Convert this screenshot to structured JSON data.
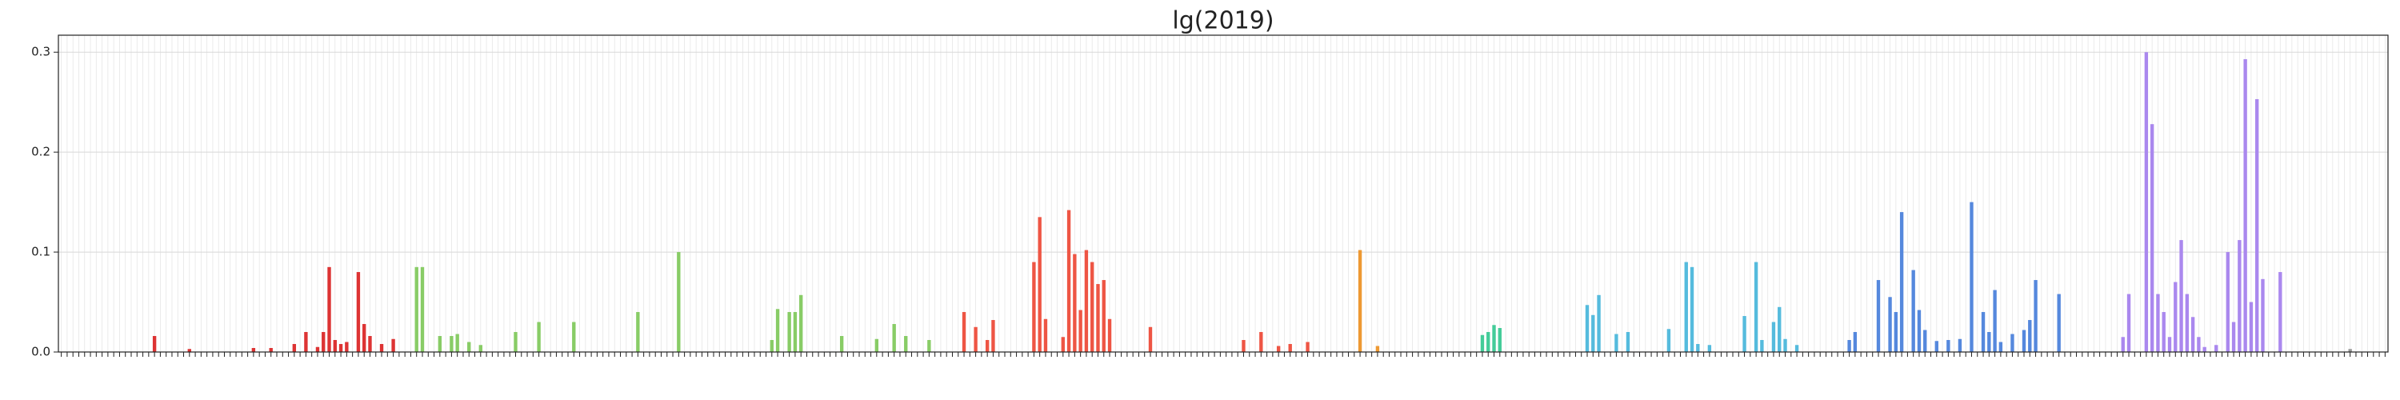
{
  "chart_data": {
    "type": "bar",
    "title": "lg(2019)",
    "categories": [
      null,
      null,
      null,
      null,
      null,
      null,
      null,
      null,
      null,
      null,
      null,
      null,
      null,
      null,
      null,
      null,
      null,
      null,
      null,
      null,
      null,
      null,
      null,
      null,
      null,
      null,
      null,
      null,
      null,
      null,
      null,
      null,
      null,
      null,
      null,
      null,
      null,
      null,
      null,
      null,
      null,
      null,
      null,
      null,
      null,
      null,
      null,
      null,
      null,
      null,
      null,
      null,
      null,
      null,
      null,
      null,
      null,
      null,
      null,
      null,
      null,
      null,
      null,
      null,
      null,
      null,
      null,
      null,
      null,
      null,
      null,
      null,
      null,
      null,
      null,
      null,
      null,
      null,
      null,
      null,
      null,
      null,
      null,
      null,
      null,
      null,
      null,
      null,
      null,
      null,
      null,
      null,
      null,
      null,
      null,
      null,
      null,
      null,
      null,
      null,
      null,
      null,
      null,
      null,
      null,
      null,
      null,
      null,
      null,
      null,
      null,
      null,
      null,
      null,
      null,
      null,
      null,
      null,
      null,
      null,
      null,
      null,
      null,
      null,
      null,
      null,
      null,
      null,
      null,
      null,
      null,
      null,
      null,
      null,
      null,
      null,
      null,
      null,
      null,
      null,
      null,
      null,
      null,
      null,
      null,
      null,
      null,
      null,
      null,
      null,
      null,
      null,
      null,
      null,
      null,
      null,
      null,
      null,
      null,
      null,
      null,
      null,
      null,
      null,
      null,
      null,
      null,
      null,
      null,
      null,
      null,
      null,
      null,
      null,
      null,
      null,
      null,
      null,
      null,
      null,
      null,
      null,
      null,
      null,
      null,
      null,
      null,
      null,
      null,
      null,
      null,
      null,
      null,
      null,
      null,
      null,
      null,
      null,
      null,
      null,
      null,
      null,
      null,
      null,
      null,
      null,
      null,
      null,
      null,
      null,
      null,
      null,
      null,
      null,
      null,
      null,
      null,
      null,
      null,
      null,
      null,
      null,
      null,
      null,
      null,
      null,
      null,
      null,
      null,
      null,
      null,
      null,
      null,
      null,
      null,
      null,
      null,
      null,
      null,
      null,
      null,
      null,
      null,
      null,
      null,
      null,
      null,
      null,
      null,
      null,
      null,
      null,
      null,
      null,
      null,
      null,
      null,
      null,
      null,
      null,
      null,
      null,
      null,
      null,
      null,
      null,
      null,
      null,
      null,
      null,
      null,
      null,
      null,
      null,
      null,
      null,
      null,
      null,
      null,
      null,
      null,
      null,
      null,
      null,
      null,
      null,
      null,
      null,
      null,
      null,
      null,
      null,
      null,
      null,
      null,
      null,
      null,
      null,
      null,
      null,
      null,
      null,
      null,
      null,
      null,
      null,
      null,
      null,
      null,
      null,
      null,
      null,
      null,
      null,
      null,
      null,
      null,
      null,
      null,
      null,
      null,
      null,
      null,
      null,
      null,
      null,
      null,
      null,
      null,
      null,
      null,
      null,
      null,
      null,
      null,
      null,
      null,
      null,
      null,
      null,
      null,
      null,
      null,
      null,
      null,
      null,
      null,
      null,
      null,
      null,
      null,
      null,
      null,
      null,
      null,
      null,
      null,
      null,
      null,
      null,
      null,
      null,
      null,
      null,
      null,
      null,
      null,
      null,
      null,
      null,
      null,
      null,
      null,
      null,
      null,
      null,
      null,
      null,
      null,
      null,
      null,
      null,
      null,
      null,
      null,
      null,
      null,
      null,
      null,
      null,
      null,
      null,
      null,
      null,
      null,
      null,
      null,
      null,
      null,
      null
    ],
    "values": [
      0,
      0,
      0,
      0,
      0,
      0,
      0,
      0,
      0,
      0,
      0,
      0,
      0,
      0,
      0,
      0,
      0.016,
      0,
      0,
      0,
      0,
      0,
      0.003,
      0,
      0,
      0,
      0,
      0,
      0,
      0,
      0,
      0,
      0,
      0.004,
      0,
      0,
      0.004,
      0,
      0,
      0,
      0.008,
      0,
      0.02,
      0,
      0.005,
      0.02,
      0.085,
      0.012,
      0.008,
      0.01,
      0,
      0.08,
      0.028,
      0.016,
      0,
      0.008,
      0,
      0.013,
      0,
      0,
      0,
      0.085,
      0.085,
      0,
      0,
      0.016,
      0,
      0.016,
      0.018,
      0,
      0.01,
      0,
      0.007,
      0,
      0,
      0,
      0,
      0,
      0.02,
      0,
      0,
      0,
      0.03,
      0,
      0,
      0,
      0,
      0,
      0.03,
      0,
      0,
      0,
      0,
      0,
      0,
      0,
      0,
      0,
      0,
      0.04,
      0,
      0,
      0,
      0,
      0,
      0,
      0.1,
      0,
      0,
      0,
      0,
      0,
      0,
      0,
      0,
      0,
      0,
      0,
      0,
      0,
      0,
      0,
      0.012,
      0.043,
      0,
      0.04,
      0.04,
      0.057,
      0,
      0,
      0,
      0,
      0,
      0,
      0.016,
      0,
      0,
      0,
      0,
      0,
      0.013,
      0,
      0,
      0.028,
      0,
      0.016,
      0,
      0,
      0,
      0.012,
      0,
      0,
      0,
      0,
      0,
      0.04,
      0,
      0.025,
      0,
      0.012,
      0.032,
      0,
      0,
      0,
      0,
      0,
      0,
      0.09,
      0.135,
      0.033,
      0,
      0,
      0.015,
      0.142,
      0.098,
      0.042,
      0.102,
      0.09,
      0.068,
      0.072,
      0.033,
      0,
      0,
      0,
      0,
      0,
      0,
      0.025,
      0,
      0,
      0,
      0,
      0,
      0,
      0,
      0,
      0,
      0,
      0,
      0,
      0,
      0,
      0,
      0.012,
      0,
      0,
      0.02,
      0,
      0,
      0.006,
      0,
      0.008,
      0,
      0,
      0.01,
      0,
      0,
      0,
      0,
      0,
      0,
      0,
      0,
      0.102,
      0,
      0,
      0.006,
      0,
      0,
      0,
      0,
      0,
      0,
      0,
      0,
      0,
      0,
      0,
      0,
      0,
      0,
      0,
      0,
      0,
      0.017,
      0.02,
      0.027,
      0.024,
      0,
      0,
      0,
      0,
      0,
      0,
      0,
      0,
      0,
      0,
      0,
      0,
      0,
      0,
      0.047,
      0.037,
      0.057,
      0,
      0,
      0.018,
      0,
      0.02,
      0,
      0,
      0,
      0,
      0,
      0,
      0.023,
      0,
      0,
      0.09,
      0.085,
      0.008,
      0,
      0.007,
      0,
      0,
      0,
      0,
      0,
      0.036,
      0,
      0.09,
      0.012,
      0,
      0.03,
      0.045,
      0.013,
      0,
      0.007,
      0,
      0,
      0,
      0,
      0,
      0,
      0,
      0,
      0.012,
      0.02,
      0,
      0,
      0,
      0.072,
      0,
      0.055,
      0.04,
      0.14,
      0,
      0.082,
      0.042,
      0.022,
      0,
      0.011,
      0,
      0.012,
      0,
      0.013,
      0,
      0.15,
      0,
      0.04,
      0.02,
      0.062,
      0.01,
      0,
      0.018,
      0,
      0.022,
      0.032,
      0.072,
      0,
      0,
      0,
      0.058,
      0,
      0,
      0,
      0,
      0,
      0,
      0,
      0,
      0,
      0,
      0.015,
      0.058,
      0,
      0,
      0.3,
      0.228,
      0.058,
      0.04,
      0.015,
      0.07,
      0.112,
      0.058,
      0.035,
      0.015,
      0.005,
      0,
      0.007,
      0,
      0.1,
      0.03,
      0.112,
      0.293,
      0.05,
      0.253,
      0.073,
      0,
      0,
      0.08,
      0,
      0,
      0,
      0,
      0,
      0,
      0,
      0,
      0,
      0,
      0,
      0.003,
      0,
      0,
      0,
      0,
      0,
      0
    ],
    "colors": [
      "#999",
      "#999",
      "#999",
      "#999",
      "#999",
      "#999",
      "#999",
      "#999",
      "#999",
      "#999",
      "#999",
      "#999",
      "#999",
      "#999",
      "#d33",
      "#d33",
      "#d33",
      "#d33",
      "#d33",
      "#d33",
      "#d33",
      "#d33",
      "#d33",
      "#d33",
      "#d33",
      "#d33",
      "#d33",
      "#d33",
      "#d33",
      "#d33",
      "#d33",
      "#d33",
      "#d33",
      "#d33",
      "#d33",
      "#d33",
      "#d33",
      "#d33",
      "#d33",
      "#d33",
      "#d33",
      "#d33",
      "#d33",
      "#d33",
      "#d33",
      "#d33",
      "#d33",
      "#d33",
      "#d33",
      "#d33",
      "#d33",
      "#d33",
      "#d33",
      "#d33",
      "#d33",
      "#d33",
      "#d33",
      "#d33",
      "#d33",
      "#d33",
      "#d33",
      "#8c6",
      "#8c6",
      "#8c6",
      "#8c6",
      "#8c6",
      "#8c6",
      "#8c6",
      "#8c6",
      "#8c6",
      "#8c6",
      "#8c6",
      "#8c6",
      "#8c6",
      "#8c6",
      "#8c6",
      "#8c6",
      "#8c6",
      "#8c6",
      "#8c6",
      "#8c6",
      "#8c6",
      "#8c6",
      "#8c6",
      "#8c6",
      "#8c6",
      "#8c6",
      "#8c6",
      "#8c6",
      "#8c6",
      "#8c6",
      "#8c6",
      "#8c6",
      "#8c6",
      "#8c6",
      "#8c6",
      "#8c6",
      "#8c6",
      "#8c6",
      "#8c6",
      "#8c6",
      "#8c6",
      "#8c6",
      "#8c6",
      "#8c6",
      "#8c6",
      "#8c6",
      "#8c6",
      "#8c6",
      "#8c6",
      "#8c6",
      "#8c6",
      "#8c6",
      "#8c6",
      "#8c6",
      "#8c6",
      "#8c6",
      "#8c6",
      "#8c6",
      "#8c6",
      "#8c6",
      "#8c6",
      "#8c6",
      "#8c6",
      "#8c6",
      "#8c6",
      "#8c6",
      "#8c6",
      "#8c6",
      "#8c6",
      "#8c6",
      "#8c6",
      "#8c6",
      "#8c6",
      "#8c6",
      "#8c6",
      "#8c6",
      "#8c6",
      "#8c6",
      "#8c6",
      "#8c6",
      "#8c6",
      "#8c6",
      "#8c6",
      "#8c6",
      "#8c6",
      "#8c6",
      "#8c6",
      "#8c6",
      "#8c6",
      "#8c6",
      "#8c6",
      "#8c6",
      "#8c6",
      "#8c6",
      "#e54",
      "#e54",
      "#e54",
      "#e54",
      "#e54",
      "#e54",
      "#e54",
      "#e54",
      "#e54",
      "#e54",
      "#e54",
      "#e54",
      "#e54",
      "#e54",
      "#e54",
      "#e54",
      "#e54",
      "#e54",
      "#e54",
      "#e54",
      "#e54",
      "#e54",
      "#e54",
      "#e54",
      "#e54",
      "#e54",
      "#e54",
      "#e54",
      "#e54",
      "#e54",
      "#e54",
      "#e54",
      "#e54",
      "#e54",
      "#e54",
      "#e54",
      "#e54",
      "#e54",
      "#e54",
      "#e54",
      "#e54",
      "#e54",
      "#e54",
      "#e54",
      "#e54",
      "#e54",
      "#e54",
      "#e54",
      "#e54",
      "#e54",
      "#e54",
      "#e54",
      "#e54",
      "#e54",
      "#e54",
      "#e54",
      "#e54",
      "#e54",
      "#e54",
      "#e54",
      "#e54",
      "#e54",
      "#e54",
      "#e93",
      "#e93",
      "#e93",
      "#e93",
      "#e93",
      "#e93",
      "#e93",
      "#e93",
      "#e93",
      "#e93",
      "#e93",
      "#e93",
      "#e93",
      "#e93",
      "#e93",
      "#e93",
      "#e93",
      "#e93",
      "#e93",
      "#e93",
      "#e93",
      "#e93",
      "#4c9",
      "#4c9",
      "#4c9",
      "#4c9",
      "#4c9",
      "#4c9",
      "#4c9",
      "#4c9",
      "#4c9",
      "#4c9",
      "#4c9",
      "#4c9",
      "#4c9",
      "#4c9",
      "#4c9",
      "#4c9",
      "#4c9",
      "#4c9",
      "#4c9",
      "#4c9",
      "#5bd",
      "#5bd",
      "#5bd",
      "#5bd",
      "#5bd",
      "#5bd",
      "#5bd",
      "#5bd",
      "#5bd",
      "#5bd",
      "#5bd",
      "#5bd",
      "#5bd",
      "#5bd",
      "#5bd",
      "#5bd",
      "#5bd",
      "#5bd",
      "#5bd",
      "#5bd",
      "#5bd",
      "#5bd",
      "#5bd",
      "#5bd",
      "#5bd",
      "#5bd",
      "#5bd",
      "#5bd",
      "#5bd",
      "#5bd",
      "#5bd",
      "#5bd",
      "#5bd",
      "#5bd",
      "#5bd",
      "#5bd",
      "#5bd",
      "#5bd",
      "#5bd",
      "#5bd",
      "#5bd",
      "#5bd",
      "#5bd",
      "#5bd",
      "#58d",
      "#58d",
      "#58d",
      "#58d",
      "#58d",
      "#58d",
      "#58d",
      "#58d",
      "#58d",
      "#58d",
      "#58d",
      "#58d",
      "#58d",
      "#58d",
      "#58d",
      "#58d",
      "#58d",
      "#58d",
      "#58d",
      "#58d",
      "#58d",
      "#58d",
      "#58d",
      "#58d",
      "#58d",
      "#58d",
      "#58d",
      "#58d",
      "#58d",
      "#58d",
      "#58d",
      "#58d",
      "#58d",
      "#58d",
      "#58d",
      "#58d",
      "#58d",
      "#58d",
      "#58d",
      "#58d",
      "#58d",
      "#58d",
      "#58d",
      "#58d",
      "#58d",
      "#58d",
      "#58d",
      "#58d",
      "#a8e",
      "#a8e",
      "#a8e",
      "#a8e",
      "#a8e",
      "#a8e",
      "#a8e",
      "#a8e",
      "#a8e",
      "#a8e",
      "#a8e",
      "#a8e",
      "#a8e",
      "#a8e",
      "#a8e",
      "#a8e",
      "#a8e",
      "#a8e",
      "#a8e",
      "#a8e",
      "#a8e",
      "#a8e",
      "#a8e",
      "#a8e",
      "#a8e",
      "#a8e",
      "#a8e",
      "#a8e",
      "#a8e",
      "#a8e",
      "#a8e",
      "#a8e",
      "#a8e",
      "#a8e",
      "#999",
      "#999",
      "#999",
      "#999",
      "#999",
      "#999",
      "#999",
      "#999",
      "#999",
      "#999",
      "#999",
      "#999",
      "#999",
      "#999"
    ],
    "ylim": [
      0,
      0.317
    ],
    "yticks": [
      {
        "value": 0,
        "label": "0.0"
      },
      0.1,
      0.2,
      0.3
    ],
    "grid": true
  }
}
